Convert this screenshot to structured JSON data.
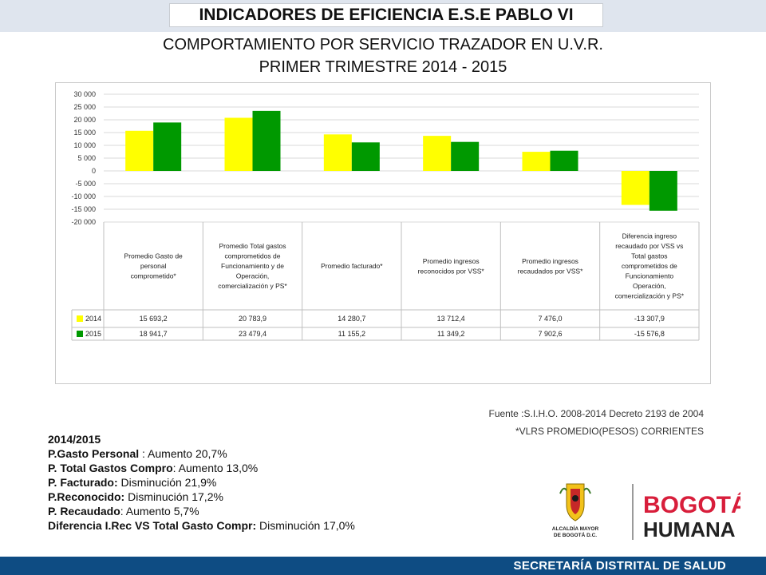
{
  "header": {
    "title": "INDICADORES DE EFICIENCIA E.S.E PABLO VI"
  },
  "subtitle": {
    "line1": "COMPORTAMIENTO POR SERVICIO TRAZADOR EN U.V.R.",
    "line2": "PRIMER TRIMESTRE 2014 - 2015"
  },
  "chart_data": {
    "type": "bar",
    "ylim": [
      -20000,
      30000
    ],
    "yticks": [
      "30 000",
      "25 000",
      "20 000",
      "15 000",
      "10 000",
      "5 000",
      "0",
      "-5 000",
      "-10 000",
      "-15 000",
      "-20 000"
    ],
    "ytick_values": [
      30000,
      25000,
      20000,
      15000,
      10000,
      5000,
      0,
      -5000,
      -10000,
      -15000,
      -20000
    ],
    "grid": true,
    "categories": [
      [
        "Promedio Gasto de",
        "personal",
        "comprometido*"
      ],
      [
        "Promedio Total gastos",
        "comprometidos de",
        "Funcionamiento y de",
        "Operación,",
        "comercialización y PS*"
      ],
      [
        "Promedio facturado*"
      ],
      [
        "Promedio ingresos",
        "reconocidos por VSS*"
      ],
      [
        "Promedio ingresos",
        "recaudados por VSS*"
      ],
      [
        "Diferencia ingreso",
        "recaudado por VSS vs",
        "Total gastos",
        "comprometidos de",
        "Funcionamiento",
        "Operación,",
        "comercialización y PS*"
      ]
    ],
    "series": [
      {
        "name": "2014",
        "color": "#ffff00",
        "values": [
          15693.2,
          20783.9,
          14280.7,
          13712.4,
          7476.0,
          -13307.9
        ],
        "labels": [
          "15 693,2",
          "20 783,9",
          "14 280,7",
          "13 712,4",
          "7 476,0",
          "-13 307,9"
        ]
      },
      {
        "name": "2015",
        "color": "#009900",
        "values": [
          18941.7,
          23479.4,
          11155.2,
          11349.2,
          7902.6,
          -15576.8
        ],
        "labels": [
          "18 941,7",
          "23 479,4",
          "11 155,2",
          "11 349,2",
          "7 902,6",
          "-15 576,8"
        ]
      }
    ]
  },
  "source": {
    "line1": "Fuente :S.I.H.O. 2008-2014  Decreto 2193 de 2004",
    "line2": "*VLRS PROMEDIO(PESOS) CORRIENTES"
  },
  "summary": {
    "heading": "2014/2015",
    "items": [
      {
        "label": "P.Gasto Personal",
        "text": " : Aumento 20,7%"
      },
      {
        "label": "P. Total Gastos Compro",
        "text": ": Aumento 13,0%"
      },
      {
        "label": "P. Facturado:",
        "text": " Disminución 21,9%"
      },
      {
        "label": "P.Reconocido:",
        "text": " Disminución 17,2%"
      },
      {
        "label": "P. Recaudado",
        "text": ":  Aumento 5,7%"
      },
      {
        "label": "Diferencia I.Rec VS Total Gasto Compr:",
        "text": " Disminución 17,0%"
      }
    ]
  },
  "logos": {
    "alcaldia": [
      "ALCALDÍA MAYOR",
      "DE BOGOTÁ D.C."
    ],
    "bogota": "BOGOTÁ",
    "humana": "HUMANA"
  },
  "footer": {
    "text": "SECRETARÍA DISTRITAL DE SALUD"
  }
}
